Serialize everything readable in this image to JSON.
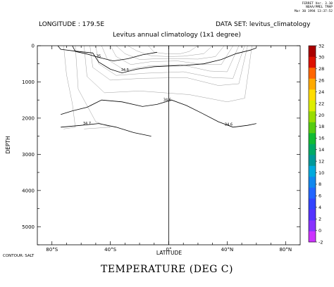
{
  "stamp_lines": [
    "FERRET Ver. 3.10",
    "NOAA/PMEL TMAP",
    "Mar 30 1994 13:37:52"
  ],
  "header_left": "LONGITUDE : 179.5E",
  "header_right": "DATA SET: levitus_climatology",
  "subtitle": "Levitus annual climatology (1x1 degree)",
  "contour_note": "CONTOUR: SALT",
  "figure_title": "TEMPERATURE (DEG C)",
  "chart_data": {
    "type": "heatmap",
    "title": "TEMPERATURE (DEG C)",
    "xlabel": "LATITUDE",
    "ylabel": "DEPTH",
    "xlim": [
      -90,
      90
    ],
    "ylim": [
      5500,
      0
    ],
    "x_ticks": [
      {
        "value": -80,
        "label": "80°S"
      },
      {
        "value": -40,
        "label": "40°S"
      },
      {
        "value": 0,
        "label": "0°"
      },
      {
        "value": 40,
        "label": "40°N"
      },
      {
        "value": 80,
        "label": "80°N"
      }
    ],
    "y_ticks": [
      0,
      1000,
      2000,
      3000,
      4000,
      5000
    ],
    "colorbar": {
      "levels": [
        -2,
        0,
        2,
        4,
        6,
        8,
        10,
        12,
        14,
        16,
        18,
        20,
        22,
        24,
        26,
        28,
        30,
        32
      ],
      "colors": [
        "#cc33ff",
        "#8833ff",
        "#5533ff",
        "#3344ff",
        "#2266ff",
        "#1188ee",
        "#00aadd",
        "#009999",
        "#00aa66",
        "#11bb33",
        "#55cc11",
        "#99dd00",
        "#ddee00",
        "#ffdd00",
        "#ffaa00",
        "#ff6600",
        "#dd1100",
        "#aa0000"
      ]
    },
    "ocean_columns": [
      {
        "x0": -78,
        "x1": -77,
        "bottom": 2000
      },
      {
        "x0": -77,
        "x1": -75,
        "bottom": 3000
      },
      {
        "x0": -75,
        "x1": -73,
        "bottom": 3600
      },
      {
        "x0": -73,
        "x1": -70,
        "bottom": 4300
      },
      {
        "x0": -70,
        "x1": -66,
        "bottom": 4600
      },
      {
        "x0": -66,
        "x1": -64,
        "bottom": 4800
      },
      {
        "x0": -64,
        "x1": -58,
        "bottom": 5250
      },
      {
        "x0": -58,
        "x1": -55,
        "bottom": 4900
      },
      {
        "x0": -55,
        "x1": -52,
        "bottom": 4300
      },
      {
        "x0": -52,
        "x1": -50,
        "bottom": 2900
      },
      {
        "x0": -50,
        "x1": -48,
        "bottom": 2250
      },
      {
        "x0": -48,
        "x1": -46,
        "bottom": 3400
      },
      {
        "x0": -46,
        "x1": -44,
        "bottom": 2700
      },
      {
        "x0": -44,
        "x1": -42,
        "bottom": 5000
      },
      {
        "x0": -42,
        "x1": -38,
        "bottom": 5250
      },
      {
        "x0": -38,
        "x1": -36,
        "bottom": 4100
      },
      {
        "x0": -36,
        "x1": -34,
        "bottom": 2600
      },
      {
        "x0": -34,
        "x1": -32,
        "bottom": 2300
      },
      {
        "x0": -32,
        "x1": -30,
        "bottom": 2700
      },
      {
        "x0": -30,
        "x1": -28,
        "bottom": 2200
      },
      {
        "x0": -28,
        "x1": -26,
        "bottom": 3100
      },
      {
        "x0": -26,
        "x1": -24,
        "bottom": 2200
      },
      {
        "x0": -24,
        "x1": -22,
        "bottom": 2900
      },
      {
        "x0": -22,
        "x1": -20,
        "bottom": 4400
      },
      {
        "x0": -20,
        "x1": -18,
        "bottom": 4400
      },
      {
        "x0": -17,
        "x1": -15,
        "bottom": 2300
      },
      {
        "x0": -15,
        "x1": -13,
        "bottom": 2600
      },
      {
        "x0": -13,
        "x1": -11,
        "bottom": 3800
      },
      {
        "x0": -11,
        "x1": -9,
        "bottom": 2100
      },
      {
        "x0": -9,
        "x1": -7,
        "bottom": 2400
      },
      {
        "x0": -7,
        "x1": -5,
        "bottom": 2100
      },
      {
        "x0": -5,
        "x1": -2,
        "bottom": 4400
      },
      {
        "x0": -2,
        "x1": 6,
        "bottom": 4200
      },
      {
        "x0": 6,
        "x1": 14,
        "bottom": 4900
      },
      {
        "x0": 14,
        "x1": 16,
        "bottom": 4400
      },
      {
        "x0": 16,
        "x1": 18,
        "bottom": 5000
      },
      {
        "x0": 18,
        "x1": 20,
        "bottom": 4700
      },
      {
        "x0": 20,
        "x1": 24,
        "bottom": 4900
      },
      {
        "x0": 24,
        "x1": 26,
        "bottom": 5200
      },
      {
        "x0": 26,
        "x1": 28,
        "bottom": 4900
      },
      {
        "x0": 28,
        "x1": 30,
        "bottom": 4500
      },
      {
        "x0": 30,
        "x1": 34,
        "bottom": 5200
      },
      {
        "x0": 34,
        "x1": 36,
        "bottom": 5300
      },
      {
        "x0": 36,
        "x1": 42,
        "bottom": 5450
      },
      {
        "x0": 42,
        "x1": 46,
        "bottom": 4800
      },
      {
        "x0": 46,
        "x1": 48,
        "bottom": 4500
      },
      {
        "x0": 48,
        "x1": 50,
        "bottom": 4200
      },
      {
        "x0": 50,
        "x1": 52,
        "bottom": 3900
      },
      {
        "x0": 52,
        "x1": 54,
        "bottom": 3400
      },
      {
        "x0": 54,
        "x1": 56,
        "bottom": 2900
      },
      {
        "x0": 56,
        "x1": 58,
        "bottom": 2400
      },
      {
        "x0": 58,
        "x1": 59,
        "bottom": 2200
      },
      {
        "x0": 59,
        "x1": 60,
        "bottom": 1200
      },
      {
        "x0": 72,
        "x1": 74,
        "bottom": 150
      },
      {
        "x0": 74,
        "x1": 76,
        "bottom": 600
      },
      {
        "x0": 76,
        "x1": 78,
        "bottom": 1200
      },
      {
        "x0": 78,
        "x1": 86,
        "bottom": 2200
      },
      {
        "x0": 86,
        "x1": 88,
        "bottom": 1100
      },
      {
        "x0": 88,
        "x1": 89,
        "bottom": 300
      }
    ],
    "isotherms": [
      {
        "level": 28,
        "points": [
          [
            -14,
            0
          ],
          [
            -10,
            180
          ],
          [
            -2,
            220
          ],
          [
            8,
            220
          ],
          [
            14,
            160
          ],
          [
            20,
            0
          ]
        ]
      },
      {
        "level": 24,
        "points": [
          [
            -28,
            0
          ],
          [
            -22,
            140
          ],
          [
            -12,
            280
          ],
          [
            0,
            300
          ],
          [
            10,
            290
          ],
          [
            24,
            220
          ],
          [
            30,
            0
          ]
        ]
      },
      {
        "level": 20,
        "points": [
          [
            -36,
            0
          ],
          [
            -30,
            220
          ],
          [
            -20,
            380
          ],
          [
            -8,
            360
          ],
          [
            6,
            360
          ],
          [
            20,
            370
          ],
          [
            32,
            300
          ],
          [
            38,
            0
          ]
        ]
      },
      {
        "level": 16,
        "points": [
          [
            -40,
            0
          ],
          [
            -36,
            300
          ],
          [
            -26,
            520
          ],
          [
            -12,
            440
          ],
          [
            6,
            420
          ],
          [
            24,
            520
          ],
          [
            36,
            520
          ],
          [
            44,
            0
          ]
        ]
      },
      {
        "level": 12,
        "points": [
          [
            -46,
            0
          ],
          [
            -42,
            380
          ],
          [
            -30,
            680
          ],
          [
            -14,
            560
          ],
          [
            8,
            520
          ],
          [
            28,
            700
          ],
          [
            40,
            720
          ],
          [
            48,
            0
          ]
        ]
      },
      {
        "level": 8,
        "points": [
          [
            -50,
            0
          ],
          [
            -48,
            500
          ],
          [
            -36,
            820
          ],
          [
            -16,
            760
          ],
          [
            10,
            720
          ],
          [
            30,
            880
          ],
          [
            44,
            900
          ],
          [
            52,
            0
          ]
        ]
      },
      {
        "level": 6,
        "points": [
          [
            -54,
            0
          ],
          [
            -52,
            600
          ],
          [
            -40,
            950
          ],
          [
            -18,
            900
          ],
          [
            12,
            880
          ],
          [
            34,
            1100
          ],
          [
            48,
            1050
          ],
          [
            54,
            0
          ]
        ]
      },
      {
        "level": 4,
        "points": [
          [
            -58,
            0
          ],
          [
            -56,
            850
          ],
          [
            -44,
            1300
          ],
          [
            -20,
            1250
          ],
          [
            14,
            1350
          ],
          [
            40,
            1550
          ],
          [
            52,
            1450
          ],
          [
            57,
            0
          ]
        ]
      },
      {
        "level": 2,
        "points": [
          [
            -64,
            0
          ],
          [
            -62,
            1200
          ],
          [
            -50,
            2100
          ],
          [
            -40,
            2250
          ],
          [
            -58,
            2300
          ]
        ]
      },
      {
        "level": 0,
        "points": [
          [
            -72,
            0
          ],
          [
            -70,
            800
          ],
          [
            -66,
            1600
          ],
          [
            -64,
            2250
          ],
          [
            -72,
            2300
          ]
        ]
      }
    ],
    "salinity_contours": [
      {
        "label": "34.5",
        "points": [
          [
            -76,
            0
          ],
          [
            -74,
            100
          ],
          [
            -64,
            150
          ],
          [
            -52,
            200
          ],
          [
            -48,
            450
          ],
          [
            -40,
            650
          ],
          [
            -32,
            750
          ],
          [
            -22,
            650
          ],
          [
            -10,
            580
          ],
          [
            0,
            560
          ],
          [
            12,
            540
          ],
          [
            24,
            500
          ],
          [
            36,
            380
          ],
          [
            46,
            220
          ],
          [
            56,
            120
          ],
          [
            60,
            60
          ]
        ]
      },
      {
        "label": "35",
        "points": [
          [
            -66,
            0
          ],
          [
            -64,
            160
          ],
          [
            -56,
            230
          ],
          [
            -48,
            320
          ],
          [
            -38,
            420
          ],
          [
            -28,
            360
          ],
          [
            -18,
            250
          ],
          [
            -8,
            180
          ]
        ]
      },
      {
        "label": "34.6",
        "points": [
          [
            -74,
            1900
          ],
          [
            -66,
            1800
          ],
          [
            -56,
            1700
          ],
          [
            -46,
            1500
          ],
          [
            -32,
            1550
          ],
          [
            -18,
            1680
          ],
          [
            -8,
            1620
          ],
          [
            2,
            1500
          ],
          [
            12,
            1650
          ],
          [
            22,
            1850
          ],
          [
            34,
            2100
          ],
          [
            44,
            2250
          ],
          [
            54,
            2200
          ],
          [
            60,
            2150
          ]
        ]
      },
      {
        "label": "34.7",
        "points": [
          [
            -74,
            2250
          ],
          [
            -60,
            2200
          ],
          [
            -48,
            2150
          ],
          [
            -36,
            2250
          ],
          [
            -24,
            2400
          ],
          [
            -12,
            2500
          ]
        ]
      }
    ],
    "salinity_labels": [
      {
        "text": "34.5",
        "x": -30,
        "y": 700
      },
      {
        "text": "35",
        "x": -48,
        "y": 320
      },
      {
        "text": "34.6",
        "x": -1,
        "y": 1530
      },
      {
        "text": "34.6",
        "x": 41,
        "y": 2210
      },
      {
        "text": "34.7",
        "x": -56,
        "y": 2180
      }
    ]
  }
}
